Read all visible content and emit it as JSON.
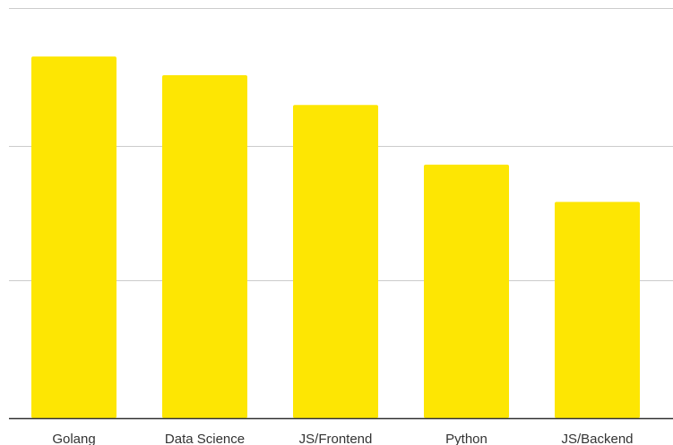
{
  "chart_data": {
    "type": "bar",
    "categories": [
      "Golang",
      "Data Science",
      "JS/Frontend",
      "Python",
      "JS/Backend"
    ],
    "values": [
      97,
      92,
      84,
      68,
      58
    ],
    "ylim": [
      0,
      110
    ],
    "grid": true,
    "gridlines_at": [
      0,
      37,
      73,
      110
    ],
    "title": "",
    "xlabel": "",
    "ylabel": "",
    "y_tick_labels_shown": false,
    "colors": {
      "bar": "#FDE603",
      "grid": "#CCCCCC",
      "axis": "#333333",
      "label": "#333333",
      "background": "#FFFFFF"
    }
  }
}
